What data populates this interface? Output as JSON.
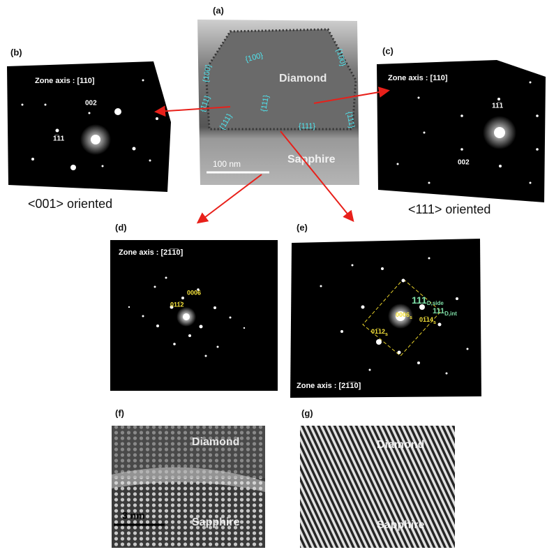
{
  "panel_a": {
    "label": "(a)",
    "diamond": "Diamond",
    "sapphire": "Sapphire",
    "scale": "100 nm",
    "facets": [
      "{100}",
      "{100}",
      "{100}",
      "{111}",
      "{111}",
      "{111}",
      "{111}",
      "{111}"
    ]
  },
  "panel_b": {
    "label": "(b)",
    "zone_axis": "Zone axis : [110]",
    "spot_1": "002",
    "spot_2": "1̅11",
    "orientation": "<001> oriented"
  },
  "panel_c": {
    "label": "(c)",
    "zone_axis": "Zone axis : [110]",
    "spot_1": "11̅1",
    "spot_2": "002",
    "orientation": "<111> oriented"
  },
  "panel_d": {
    "label": "(d)",
    "zone_axis": "Zone axis : [21̅1̅0]",
    "spot_1": "0006",
    "spot_2": "011̅2"
  },
  "panel_e": {
    "label": "(e)",
    "zone_axis": "Zone axis : [21̅1̅0]",
    "spot_side": {
      "main": "111",
      "sub": "D,side"
    },
    "spot_int": {
      "main": "111",
      "sub": "D,int"
    },
    "spot_0006": {
      "main": "0006",
      "sub": "s"
    },
    "spot_0114": {
      "main": "01̅14",
      "sub": "s"
    },
    "spot_0112": {
      "main": "01̅12",
      "sub": "s"
    }
  },
  "panel_f": {
    "label": "(f)",
    "diamond": "Diamond",
    "sapphire": "Sapphire",
    "scale": "3 nm"
  },
  "panel_g": {
    "label": "(g)",
    "diamond": "Diamond",
    "sapphire": "Sapphire"
  }
}
